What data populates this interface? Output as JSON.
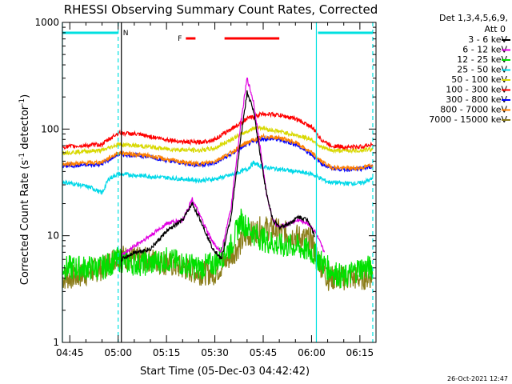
{
  "header": {
    "title": "RHESSI Observing Summary Count Rates, Corrected",
    "detectors": "Det 1,3,4,5,6,9,",
    "attenuator": "Att 0",
    "footer_date": "26-Oct-2021 12:47"
  },
  "colors": {
    "3 - 6 keV": "#000000",
    "6 - 12 keV": "#e000e0",
    "12 - 25 keV": "#00e000",
    "25 - 50 keV": "#00d8e8",
    "50 - 100 keV": "#d8d800",
    "100 - 300 keV": "#ff0000",
    "300 - 800 keV": "#0000ff",
    "800 - 7000 keV": "#ff8000",
    "7000 - 15000 keV": "#8b7d1a",
    "night_marker": "#00e0e0",
    "flare_marker": "#ff0000",
    "saa_line": "#00e0e0"
  },
  "chart_data": {
    "type": "line",
    "title": "RHESSI Observing Summary Count Rates, Corrected",
    "xlabel": "Start Time (05-Dec-03 04:42:42)",
    "ylabel": "Corrected Count Rate (s-1 detector-1)",
    "yscale": "log",
    "xlim": [
      "04:42:42",
      "06:20:00"
    ],
    "ylim": [
      1,
      1000
    ],
    "xticks": [
      "04:45",
      "05:00",
      "05:15",
      "05:30",
      "05:45",
      "06:00",
      "06:15"
    ],
    "yticks": [
      1,
      10,
      100,
      1000
    ],
    "ytick_labels": [
      "1",
      "10",
      "100",
      "1000"
    ],
    "legend_position": "right",
    "markers": {
      "night_label": "N",
      "flare_label": "F",
      "night_intervals": [
        [
          "04:42:42",
          "05:00:00"
        ],
        [
          "06:02:00",
          "06:19:00"
        ]
      ],
      "flare_intervals": [
        [
          "05:21:00",
          "05:24:00"
        ],
        [
          "05:33:00",
          "05:50:00"
        ]
      ]
    },
    "vertical_lines": [
      {
        "time": "05:01:00",
        "style": "solid",
        "color": "#000000"
      },
      {
        "time": "05:00:00",
        "style": "dashed",
        "color": "#00e0e0"
      },
      {
        "time": "06:01:30",
        "style": "solid",
        "color": "#00e0e0"
      },
      {
        "time": "06:19:00",
        "style": "dashed",
        "color": "#00e0e0"
      },
      {
        "time": "04:42:42",
        "style": "solid",
        "color": "#00e0e0"
      }
    ],
    "series": [
      {
        "name": "3 - 6 keV",
        "x": [
          "05:01",
          "05:05",
          "05:10",
          "05:15",
          "05:20",
          "05:23",
          "05:26",
          "05:29",
          "05:32",
          "05:35",
          "05:38",
          "05:40",
          "05:42",
          "05:44",
          "05:46",
          "05:48",
          "05:50",
          "05:53",
          "05:56",
          "05:59",
          "06:01"
        ],
        "y": [
          6,
          7,
          7.5,
          11,
          14,
          20,
          13,
          8,
          6,
          15,
          80,
          220,
          150,
          60,
          25,
          14,
          12,
          13,
          15,
          14,
          10
        ]
      },
      {
        "name": "6 - 12 keV",
        "x": [
          "05:01",
          "05:05",
          "05:10",
          "05:15",
          "05:20",
          "05:23",
          "05:26",
          "05:29",
          "05:32",
          "05:35",
          "05:38",
          "05:40",
          "05:42",
          "05:44",
          "05:46",
          "05:48",
          "05:50",
          "05:53",
          "05:56",
          "05:59",
          "06:01",
          "06:04"
        ],
        "y": [
          6.5,
          8,
          10,
          13,
          14,
          22,
          14,
          9,
          7,
          18,
          110,
          300,
          180,
          70,
          25,
          14,
          12,
          13,
          14,
          13,
          11,
          7
        ]
      },
      {
        "name": "12 - 25 keV",
        "x": [
          "04:42:42",
          "04:50",
          "04:55",
          "05:00",
          "05:05",
          "05:10",
          "05:15",
          "05:20",
          "05:25",
          "05:30",
          "05:35",
          "05:38",
          "05:40",
          "05:43",
          "05:46",
          "05:50",
          "05:55",
          "06:00",
          "06:05",
          "06:10",
          "06:15",
          "06:19"
        ],
        "y": [
          5,
          5,
          5,
          6,
          5.5,
          5.5,
          6,
          5.5,
          5,
          5.5,
          8,
          14,
          12,
          10,
          9,
          8,
          8,
          7,
          5,
          4,
          5,
          5
        ]
      },
      {
        "name": "25 - 50 keV",
        "x": [
          "04:42:42",
          "04:48",
          "04:52",
          "04:55",
          "04:57",
          "05:00",
          "05:05",
          "05:10",
          "05:15",
          "05:20",
          "05:25",
          "05:30",
          "05:35",
          "05:40",
          "05:42",
          "05:45",
          "05:50",
          "05:55",
          "06:00",
          "06:05",
          "06:10",
          "06:15",
          "06:19"
        ],
        "y": [
          32,
          30,
          28,
          25,
          34,
          38,
          37,
          36,
          35,
          34,
          33,
          34,
          37,
          42,
          48,
          44,
          42,
          40,
          38,
          32,
          31,
          31,
          34
        ]
      },
      {
        "name": "50 - 100 keV",
        "x": [
          "04:42:42",
          "04:50",
          "04:55",
          "05:00",
          "05:05",
          "05:10",
          "05:15",
          "05:20",
          "05:25",
          "05:30",
          "05:35",
          "05:40",
          "05:43",
          "05:46",
          "05:50",
          "05:55",
          "06:00",
          "06:03",
          "06:06",
          "06:10",
          "06:15",
          "06:19"
        ],
        "y": [
          60,
          62,
          63,
          72,
          70,
          68,
          65,
          64,
          63,
          66,
          80,
          95,
          105,
          100,
          95,
          88,
          80,
          68,
          63,
          63,
          63,
          65
        ]
      },
      {
        "name": "100 - 300 keV",
        "x": [
          "04:42:42",
          "04:50",
          "04:55",
          "05:00",
          "05:05",
          "05:10",
          "05:15",
          "05:20",
          "05:25",
          "05:30",
          "05:35",
          "05:40",
          "05:45",
          "05:50",
          "05:55",
          "06:00",
          "06:03",
          "06:06",
          "06:10",
          "06:15",
          "06:19"
        ],
        "y": [
          68,
          70,
          72,
          92,
          90,
          85,
          80,
          76,
          75,
          80,
          100,
          125,
          140,
          135,
          125,
          105,
          80,
          70,
          68,
          68,
          72
        ]
      },
      {
        "name": "300 - 800 keV",
        "x": [
          "04:42:42",
          "04:50",
          "04:55",
          "05:00",
          "05:05",
          "05:10",
          "05:15",
          "05:20",
          "05:25",
          "05:30",
          "05:35",
          "05:40",
          "05:45",
          "05:50",
          "05:55",
          "06:00",
          "06:03",
          "06:06",
          "06:10",
          "06:15",
          "06:19"
        ],
        "y": [
          45,
          46,
          47,
          58,
          57,
          55,
          51,
          48,
          46,
          48,
          58,
          72,
          82,
          80,
          72,
          58,
          48,
          43,
          42,
          42,
          45
        ]
      },
      {
        "name": "800 - 7000 keV",
        "x": [
          "04:42:42",
          "04:50",
          "04:55",
          "05:00",
          "05:05",
          "05:10",
          "05:15",
          "05:20",
          "05:25",
          "05:30",
          "05:35",
          "05:40",
          "05:45",
          "05:50",
          "05:55",
          "06:00",
          "06:03",
          "06:06",
          "06:10",
          "06:15",
          "06:19"
        ],
        "y": [
          47,
          48,
          49,
          60,
          58,
          56,
          52,
          49,
          47,
          50,
          60,
          75,
          85,
          83,
          75,
          60,
          50,
          44,
          43,
          43,
          46
        ]
      },
      {
        "name": "7000 - 15000 keV",
        "x": [
          "04:42:42",
          "04:48",
          "04:55",
          "05:00",
          "05:05",
          "05:10",
          "05:15",
          "05:20",
          "05:25",
          "05:30",
          "05:35",
          "05:40",
          "05:45",
          "05:50",
          "05:55",
          "06:00",
          "06:02",
          "06:05",
          "06:10",
          "06:15",
          "06:19"
        ],
        "y": [
          4,
          4.2,
          5,
          6.5,
          6,
          6,
          5.5,
          5,
          4.5,
          4.5,
          6.5,
          10,
          12,
          11,
          10,
          9,
          6,
          4,
          4,
          4,
          4.2
        ]
      }
    ]
  }
}
